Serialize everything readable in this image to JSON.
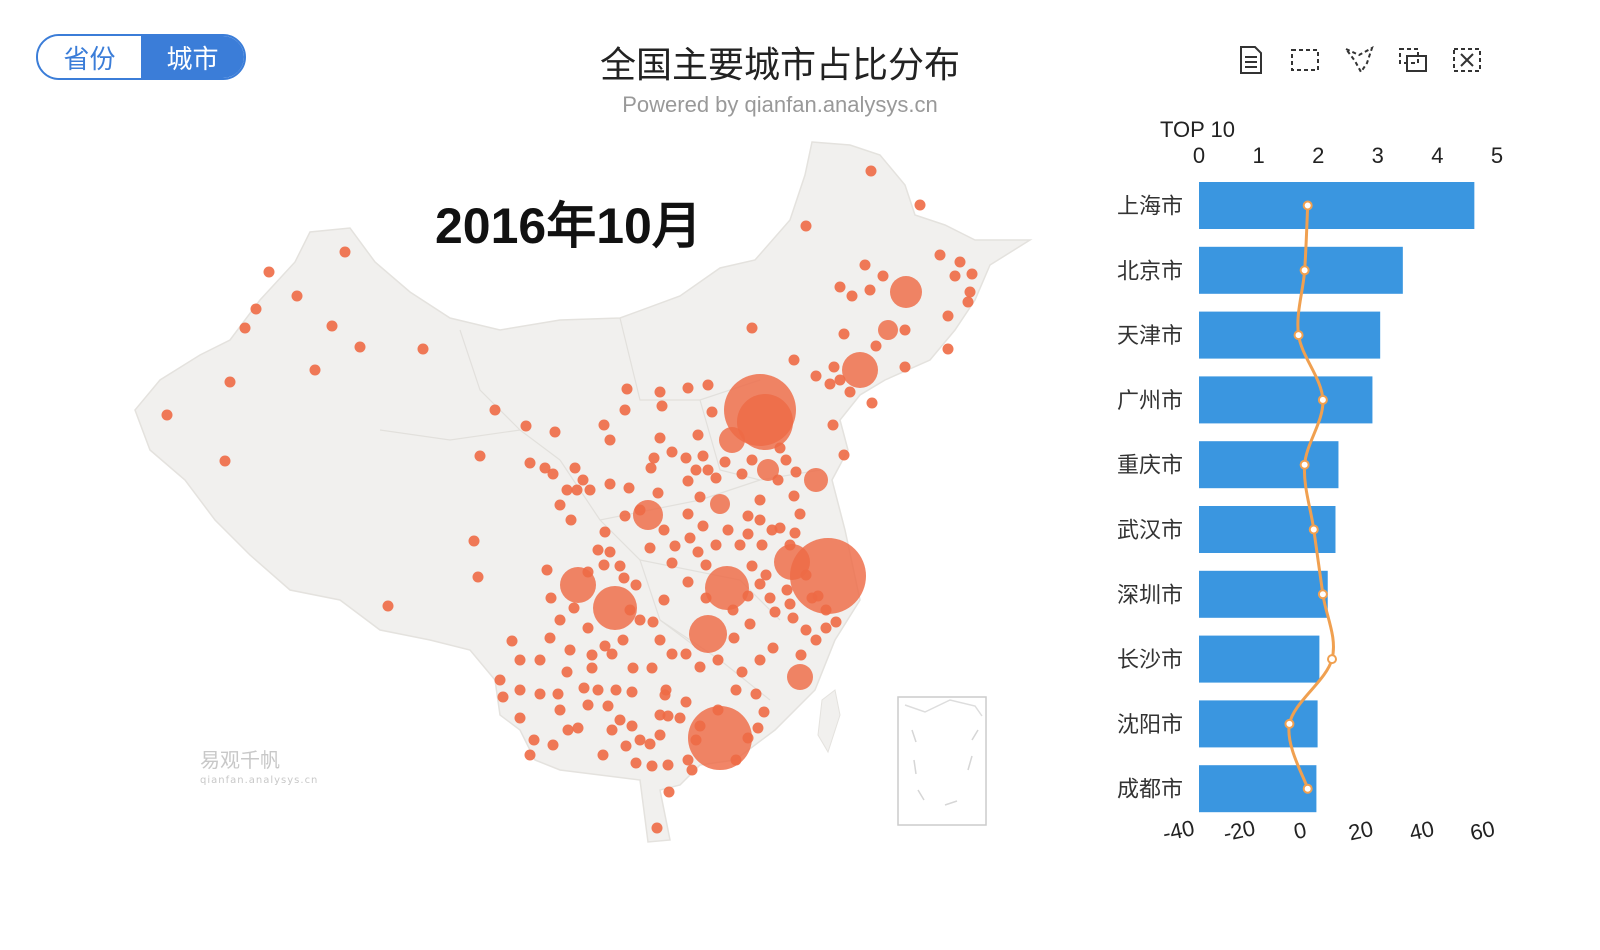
{
  "toggle": {
    "left_label": "省份",
    "right_label": "城市",
    "active": "城市"
  },
  "title": "全国主要城市占比分布",
  "subtitle": "Powered by qianfan.analysys.cn",
  "period": "2016年10月",
  "toolbox": [
    "data-view-icon",
    "rect-select-icon",
    "lasso-select-icon",
    "keep-select-icon",
    "clear-select-icon"
  ],
  "watermark": {
    "name": "易观千帆",
    "url": "qianfan.analysys.cn"
  },
  "colors": {
    "accent": "#3b7dd8",
    "bar": "#3a96e0",
    "line": "#f0a050",
    "bubble": "#ee6a45",
    "land": "#f1f0ee"
  },
  "chart_data": [
    {
      "type": "bar",
      "title": "TOP 10",
      "categories": [
        "上海市",
        "北京市",
        "天津市",
        "广州市",
        "重庆市",
        "武汉市",
        "深圳市",
        "长沙市",
        "沈阳市",
        "成都市"
      ],
      "values": [
        4.62,
        3.42,
        3.04,
        2.91,
        2.34,
        2.29,
        2.16,
        2.02,
        1.99,
        1.97
      ],
      "xlim": [
        0,
        5
      ],
      "xticks": [
        0,
        1,
        2,
        3,
        4,
        5
      ],
      "series": [
        {
          "type": "bar",
          "values": [
            4.62,
            3.42,
            3.04,
            2.91,
            2.34,
            2.29,
            2.16,
            2.02,
            1.99,
            1.97
          ]
        },
        {
          "type": "line",
          "values": [
            2,
            1,
            -1,
            7,
            1,
            4,
            7,
            10,
            -4,
            2
          ]
        }
      ],
      "secondary_xlim": [
        -40,
        60
      ],
      "secondary_xticks": [
        -40,
        -20,
        0,
        20,
        40,
        60
      ]
    }
  ]
}
